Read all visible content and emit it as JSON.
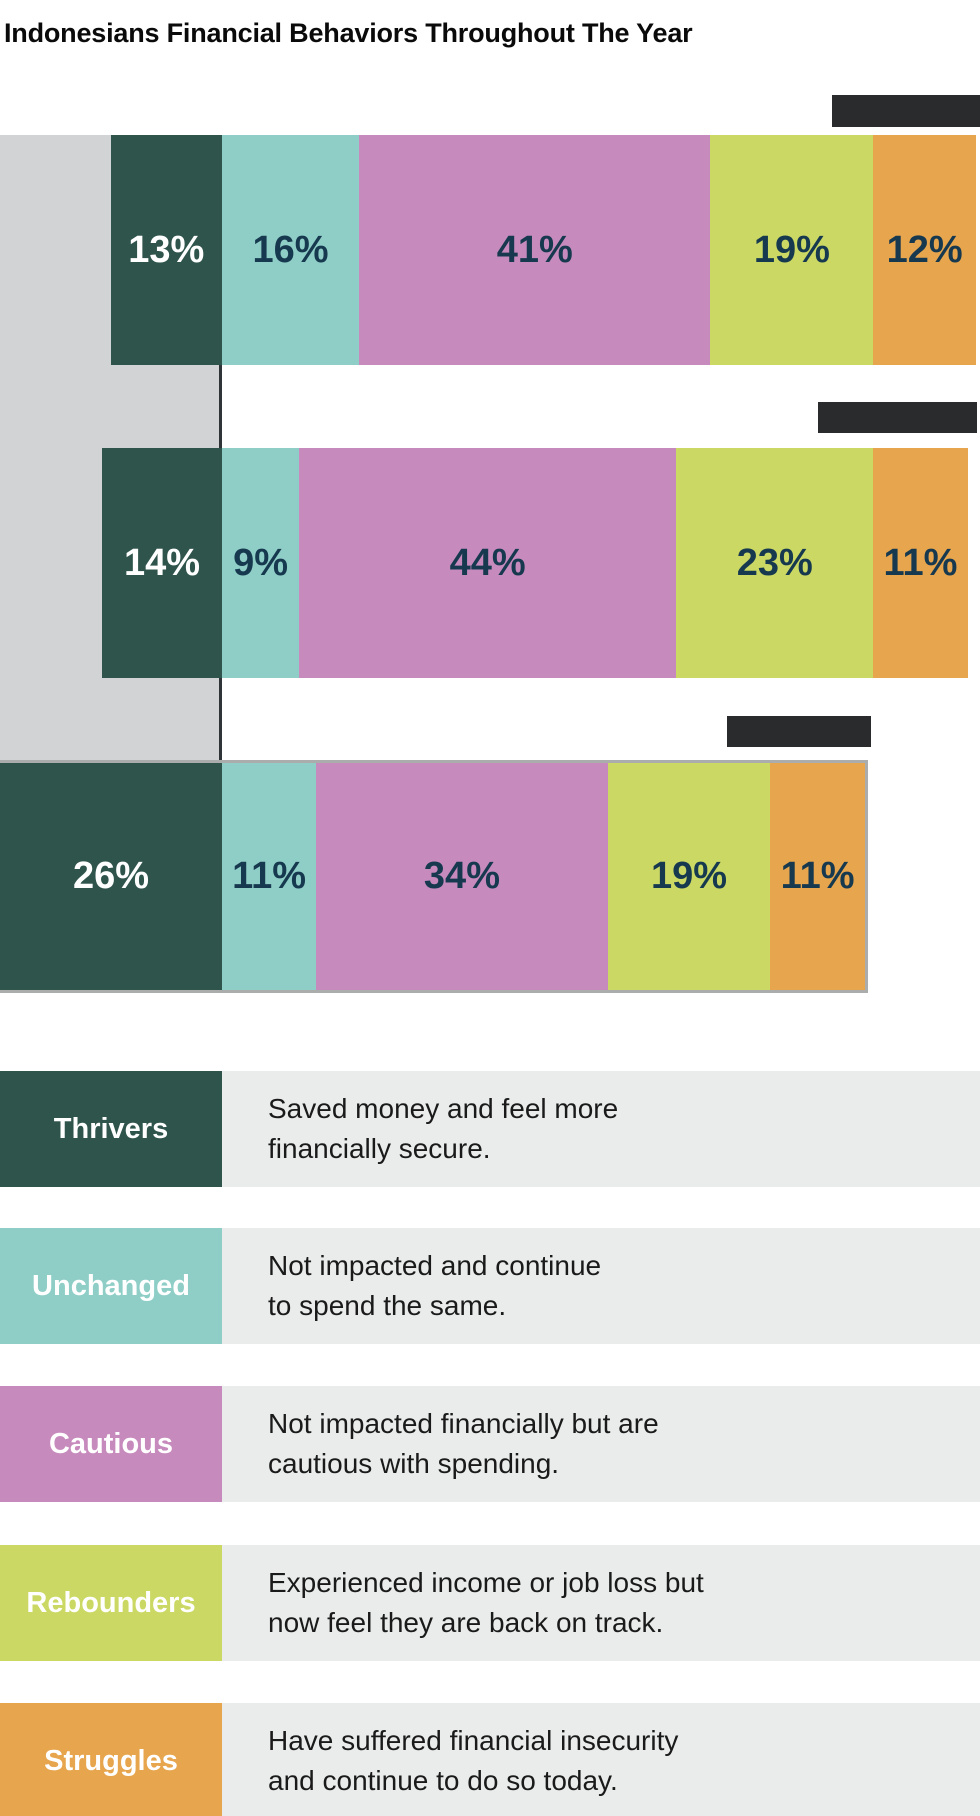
{
  "title": "Indonesians Financial Behaviors Throughout The Year",
  "chart_data": {
    "type": "bar",
    "variant": "horizontal_stacked_diverging",
    "unit": "%",
    "segments": [
      "Thrivers",
      "Unchanged",
      "Cautious",
      "Rebounders",
      "Struggles"
    ],
    "segment_colors": [
      "#2F544C",
      "#8FCEC7",
      "#C78ABD",
      "#CBD964",
      "#E7A54D"
    ],
    "period_labels_redacted": true,
    "bars": [
      {
        "period_label": "",
        "values": [
          13,
          16,
          41,
          19,
          12
        ]
      },
      {
        "period_label": "",
        "values": [
          14,
          9,
          44,
          23,
          11
        ]
      },
      {
        "period_label": "",
        "values": [
          26,
          11,
          34,
          19,
          11
        ]
      }
    ]
  },
  "legend": [
    {
      "label": "Thrivers",
      "color": "#2F544C",
      "description": "Saved money and feel more\nfinancially secure."
    },
    {
      "label": "Unchanged",
      "color": "#8FCEC7",
      "description": "Not impacted and continue\nto spend the same."
    },
    {
      "label": "Cautious",
      "color": "#C78ABD",
      "description": "Not impacted financially but are\ncautious with spending."
    },
    {
      "label": "Rebounders",
      "color": "#CBD964",
      "description": "Experienced income or job loss but\nnow feel they are back on track."
    },
    {
      "label": "Struggles",
      "color": "#E7A54D",
      "description": "Have suffered financial insecurity\nand continue to do so today."
    }
  ],
  "colors": {
    "title_text": "#0A0A0A",
    "value_text_dark": "#17394F",
    "value_text_light": "#FFFFFF",
    "axis_panel": "#D2D3D4",
    "axis_line": "#2E3438",
    "redacted_label": "#2A2B2D",
    "legend_description_bg": "#E9ECEB",
    "description_text": "#1A1A1A"
  }
}
